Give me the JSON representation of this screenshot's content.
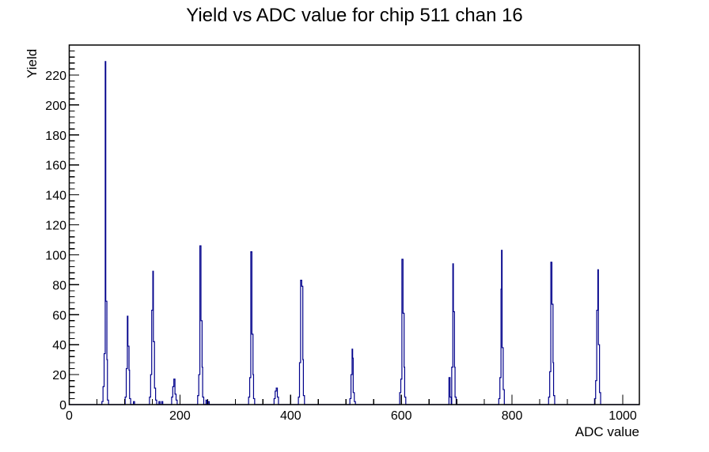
{
  "chart_data": {
    "type": "line",
    "style": "step-histogram",
    "title": "Yield vs ADC value for chip 511 chan 16",
    "xlabel": "ADC value",
    "ylabel": "Yield",
    "xlim": [
      0,
      1030
    ],
    "ylim": [
      0,
      240
    ],
    "x_major_ticks": [
      0,
      200,
      400,
      600,
      800,
      1000
    ],
    "x_minor_step": 50,
    "y_major_step": 20,
    "y_major_max": 220,
    "y_minor_step": 4,
    "grid": false,
    "legend": false,
    "line_color": "#00008b",
    "bin_half_width": 1,
    "clusters": [
      [
        [
          60,
          2
        ],
        [
          62,
          12
        ],
        [
          64,
          34
        ],
        [
          65,
          229
        ],
        [
          67,
          69
        ],
        [
          68,
          30
        ],
        [
          70,
          3
        ]
      ],
      [
        [
          102,
          5
        ],
        [
          104,
          24
        ],
        [
          105,
          59
        ],
        [
          107,
          39
        ],
        [
          108,
          23
        ],
        [
          110,
          4
        ]
      ],
      [
        [
          117,
          2
        ]
      ],
      [
        [
          146,
          5
        ],
        [
          148,
          20
        ],
        [
          150,
          63
        ],
        [
          151,
          89
        ],
        [
          153,
          42
        ],
        [
          155,
          11
        ],
        [
          157,
          3
        ]
      ],
      [
        [
          163,
          2
        ],
        [
          168,
          2
        ]
      ],
      [
        [
          186,
          5
        ],
        [
          188,
          12
        ],
        [
          190,
          17
        ],
        [
          192,
          7
        ],
        [
          194,
          3
        ]
      ],
      [
        [
          233,
          6
        ],
        [
          235,
          20
        ],
        [
          237,
          106
        ],
        [
          239,
          56
        ],
        [
          240,
          25
        ],
        [
          242,
          5
        ]
      ],
      [
        [
          248,
          3
        ],
        [
          252,
          2
        ]
      ],
      [
        [
          325,
          5
        ],
        [
          327,
          18
        ],
        [
          329,
          102
        ],
        [
          331,
          47
        ],
        [
          332,
          20
        ],
        [
          334,
          4
        ]
      ],
      [
        [
          371,
          4
        ],
        [
          373,
          9
        ],
        [
          375,
          11
        ],
        [
          377,
          5
        ]
      ],
      [
        [
          415,
          5
        ],
        [
          417,
          28
        ],
        [
          419,
          83
        ],
        [
          421,
          79
        ],
        [
          422,
          30
        ],
        [
          424,
          6
        ]
      ],
      [
        [
          508,
          4
        ],
        [
          510,
          20
        ],
        [
          511,
          37
        ],
        [
          512,
          31
        ],
        [
          514,
          8
        ],
        [
          516,
          2
        ]
      ],
      [
        [
          598,
          8
        ],
        [
          600,
          17
        ],
        [
          602,
          97
        ],
        [
          604,
          61
        ],
        [
          605,
          25
        ],
        [
          607,
          5
        ]
      ],
      [
        [
          687,
          18
        ],
        [
          689,
          5
        ],
        [
          692,
          25
        ],
        [
          693,
          94
        ],
        [
          695,
          62
        ],
        [
          696,
          25
        ],
        [
          698,
          5
        ]
      ],
      [
        [
          777,
          4
        ],
        [
          779,
          18
        ],
        [
          780,
          77
        ],
        [
          781,
          103
        ],
        [
          783,
          38
        ],
        [
          785,
          10
        ]
      ],
      [
        [
          867,
          5
        ],
        [
          869,
          22
        ],
        [
          871,
          95
        ],
        [
          873,
          67
        ],
        [
          874,
          28
        ],
        [
          876,
          6
        ]
      ],
      [
        [
          950,
          4
        ],
        [
          952,
          16
        ],
        [
          954,
          63
        ],
        [
          955,
          90
        ],
        [
          957,
          40
        ],
        [
          959,
          8
        ]
      ]
    ]
  }
}
